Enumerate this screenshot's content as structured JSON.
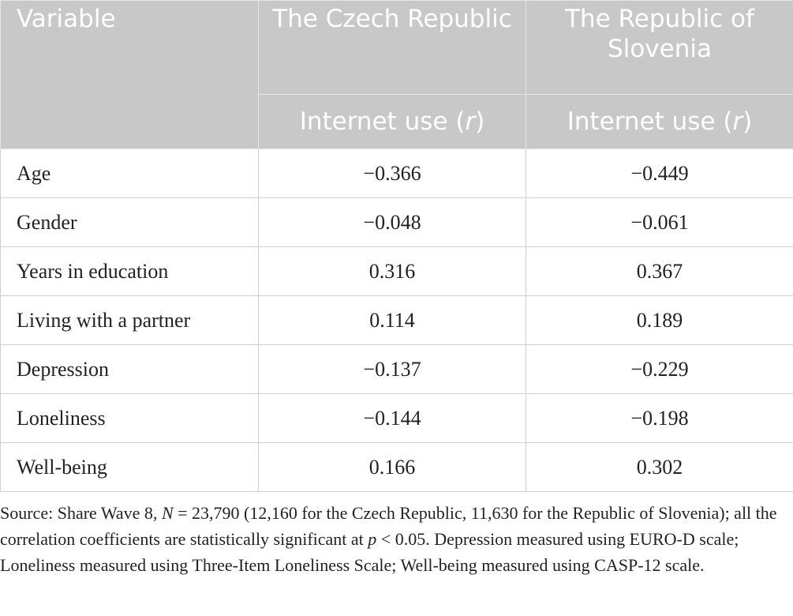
{
  "table": {
    "header": {
      "variable": "Variable",
      "columns": [
        "The Czech Republic",
        "The Republic of Slovenia"
      ],
      "subheader": [
        [
          "Internet use (",
          "r",
          ")"
        ],
        [
          "Internet use (",
          "r",
          ")"
        ]
      ]
    },
    "rows": [
      [
        "Age",
        "−0.366",
        "−0.449"
      ],
      [
        "Gender",
        "−0.048",
        "−0.061"
      ],
      [
        "Years in education",
        "0.316",
        "0.367"
      ],
      [
        "Living with a partner",
        "0.114",
        "0.189"
      ],
      [
        "Depression",
        "−0.137",
        "−0.229"
      ],
      [
        "Loneliness",
        "−0.144",
        "−0.198"
      ],
      [
        "Well-being",
        "0.166",
        "0.302"
      ]
    ],
    "footnote": [
      "Source: Share Wave 8, ",
      "N",
      " = 23,790 (12,160 for the Czech Republic, 11,630 for the Republic of Slovenia); all the correlation coefficients are statistically significant at ",
      "p",
      " < 0.05. Depression measured using EURO-D scale; Loneliness measured using Three-Item Loneliness Scale; Well-being measured using CASP-12 scale."
    ]
  }
}
